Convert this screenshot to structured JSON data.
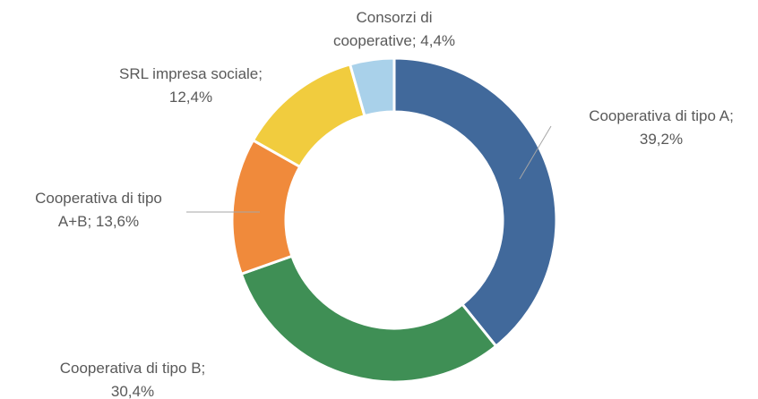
{
  "chart_data": {
    "type": "donut",
    "values": [
      39.2,
      30.4,
      13.6,
      12.4,
      4.4
    ],
    "value_labels": [
      [
        "Cooperativa di tipo A;",
        "39,2%"
      ],
      [
        "Cooperativa di tipo B;",
        "30,4%"
      ],
      [
        "Cooperativa di tipo",
        "A+B; 13,6%"
      ],
      [
        "SRL impresa sociale;",
        "12,4%"
      ],
      [
        "Consorzi di",
        "cooperative; 4,4%"
      ]
    ],
    "colors": [
      "#41699b",
      "#3f8f55",
      "#f08a3b",
      "#f1cc3e",
      "#a9d1ea"
    ]
  }
}
